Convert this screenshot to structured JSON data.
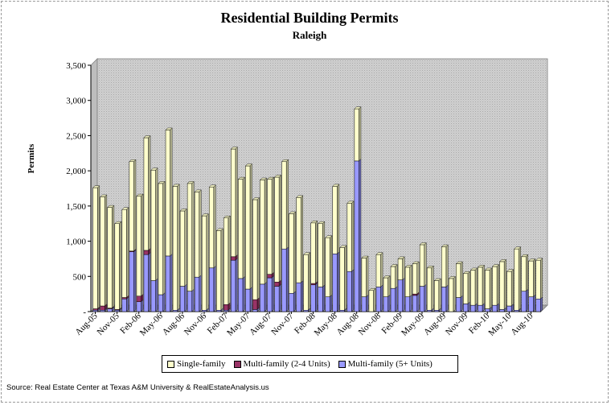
{
  "chart_data": {
    "type": "bar",
    "stacked": true,
    "title": "Residential Building Permits",
    "subtitle": "Raleigh",
    "ylabel": "Permits",
    "xlabel": "",
    "ylim": [
      0,
      3500
    ],
    "yticks": [
      "-",
      "500",
      "1,000",
      "1,500",
      "2,000",
      "2,500",
      "3,000",
      "3,500"
    ],
    "ytick_values": [
      0,
      500,
      1000,
      1500,
      2000,
      2500,
      3000,
      3500
    ],
    "xtick_labels": [
      {
        "index": 0,
        "label": "Aug-05"
      },
      {
        "index": 3,
        "label": "Nov-05"
      },
      {
        "index": 6,
        "label": "Feb-06"
      },
      {
        "index": 9,
        "label": "May-06"
      },
      {
        "index": 12,
        "label": "Aug-06"
      },
      {
        "index": 15,
        "label": "Nov-06"
      },
      {
        "index": 18,
        "label": "Feb-07"
      },
      {
        "index": 21,
        "label": "May-07"
      },
      {
        "index": 24,
        "label": "Aug-07"
      },
      {
        "index": 27,
        "label": "Nov-07"
      },
      {
        "index": 30,
        "label": "Feb-08"
      },
      {
        "index": 33,
        "label": "May-08"
      },
      {
        "index": 36,
        "label": "Aug-08"
      },
      {
        "index": 39,
        "label": "Nov-08"
      },
      {
        "index": 42,
        "label": "Feb-09"
      },
      {
        "index": 45,
        "label": "May-09"
      },
      {
        "index": 48,
        "label": "Aug-09"
      },
      {
        "index": 51,
        "label": "Nov-09"
      },
      {
        "index": 54,
        "label": "Feb-10"
      },
      {
        "index": 57,
        "label": "May-10"
      },
      {
        "index": 60,
        "label": "Aug-10"
      }
    ],
    "grid": false,
    "legend_position": "bottom",
    "series": [
      {
        "name": "Single-family",
        "color": "#ffffcc",
        "values": [
          1720,
          1550,
          1430,
          1220,
          1250,
          1270,
          1420,
          1600,
          1570,
          1580,
          1790,
          1760,
          1070,
          1530,
          1210,
          1340,
          1150,
          1130,
          1230,
          1530,
          1410,
          1750,
          1420,
          1480,
          1350,
          1490,
          1240,
          1130,
          1210,
          790,
          860,
          900,
          840,
          960,
          890,
          970,
          740,
          550,
          300,
          460,
          270,
          310,
          300,
          420,
          430,
          590,
          600,
          420,
          570,
          470,
          480,
          430,
          500,
          540,
          550,
          550,
          680,
          490,
          870,
          490,
          510,
          550
        ]
      },
      {
        "name": "Multi-family (2-4 Units)",
        "color": "#993366",
        "values": [
          20,
          60,
          10,
          10,
          20,
          10,
          80,
          60,
          0,
          0,
          0,
          0,
          0,
          0,
          0,
          0,
          0,
          0,
          80,
          50,
          0,
          0,
          140,
          0,
          50,
          60,
          0,
          0,
          0,
          0,
          20,
          0,
          0,
          0,
          0,
          0,
          0,
          0,
          0,
          0,
          0,
          0,
          0,
          0,
          20,
          0,
          0,
          0,
          0,
          0,
          0,
          0,
          0,
          0,
          0,
          0,
          0,
          0,
          0,
          0,
          0,
          0
        ]
      },
      {
        "name": "Multi-family (5+ Units)",
        "color": "#9999ff",
        "values": [
          20,
          20,
          40,
          20,
          180,
          850,
          140,
          810,
          440,
          240,
          790,
          20,
          360,
          290,
          490,
          20,
          620,
          20,
          20,
          730,
          470,
          320,
          30,
          390,
          480,
          360,
          890,
          260,
          410,
          20,
          380,
          350,
          210,
          820,
          20,
          570,
          2140,
          210,
          0,
          350,
          210,
          330,
          450,
          210,
          230,
          360,
          20,
          20,
          350,
          0,
          200,
          110,
          90,
          90,
          40,
          90,
          30,
          80,
          20,
          290,
          210,
          180
        ]
      }
    ]
  },
  "source_text": "Source: Real Estate Center at Texas A&M University & RealEstateAnalysis.us"
}
